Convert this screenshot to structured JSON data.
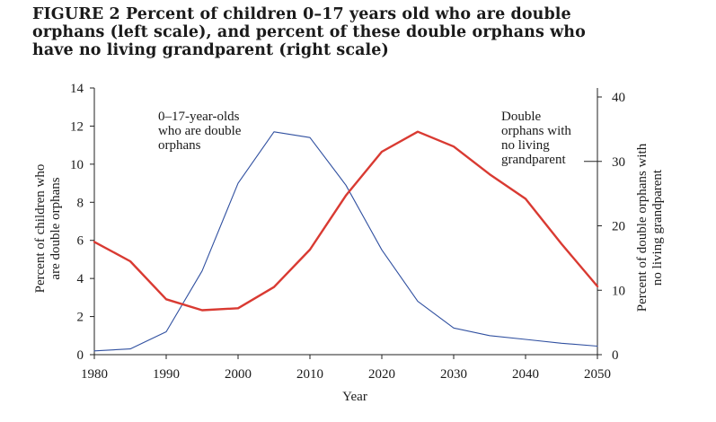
{
  "title_lines": [
    "FIGURE 2 Percent of children 0–17 years old who are double",
    "orphans (left scale), and percent of these double orphans who",
    "have no living grandparent (right scale)"
  ],
  "colors": {
    "double_orphans": "#3050a0",
    "no_grandparent": "#d93a32",
    "axis": "#222222"
  },
  "chart_data": {
    "type": "line",
    "xlabel": "Year",
    "ylabel_left": [
      "Percent of children who",
      "are double orphans"
    ],
    "ylabel_right": [
      "Percent of double orphans with",
      "no living grandparent"
    ],
    "xlim": [
      1980,
      2050
    ],
    "ylim_left": [
      0,
      14
    ],
    "ylim_right": [
      0,
      40
    ],
    "x_ticks": [
      1980,
      1990,
      2000,
      2010,
      2020,
      2030,
      2040,
      2050
    ],
    "y_ticks_left": [
      0,
      2,
      4,
      6,
      8,
      10,
      12,
      14
    ],
    "y_ticks_right": [
      0,
      10,
      20,
      30,
      40
    ],
    "grid": false,
    "series": [
      {
        "name_lines": [
          "0–17-year-olds",
          "who are double",
          "orphans"
        ],
        "axis": "left",
        "color": "#3050a0",
        "x": [
          1980,
          1985,
          1990,
          1995,
          2000,
          2005,
          2010,
          2015,
          2020,
          2025,
          2030,
          2035,
          2040,
          2045,
          2050
        ],
        "y": [
          0.2,
          0.3,
          1.2,
          4.4,
          9.0,
          11.7,
          11.4,
          8.9,
          5.5,
          2.8,
          1.4,
          1.0,
          0.8,
          0.6,
          0.45
        ]
      },
      {
        "name_lines": [
          "Double",
          "orphans with",
          "no living",
          "grandparent"
        ],
        "axis": "right",
        "color": "#d93a32",
        "x": [
          1980,
          1985,
          1990,
          1995,
          2000,
          2005,
          2010,
          2015,
          2020,
          2025,
          2030,
          2035,
          2040,
          2045,
          2050
        ],
        "y": [
          17.5,
          14.5,
          8.6,
          6.9,
          7.2,
          10.5,
          16.3,
          24.7,
          31.5,
          34.6,
          32.3,
          28.0,
          24.2,
          17.2,
          10.6
        ]
      }
    ]
  }
}
